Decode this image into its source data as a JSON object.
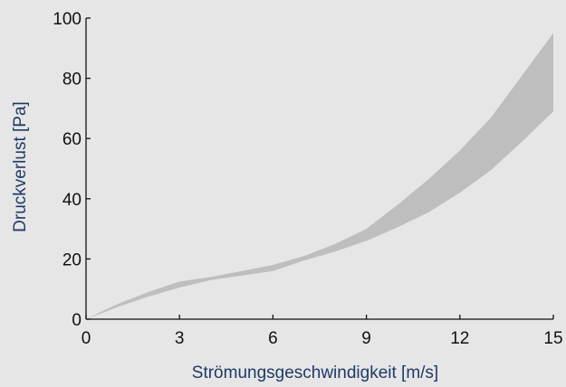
{
  "chart_data": {
    "type": "area",
    "title": "",
    "xlabel": "Strömungsgeschwindigkeit [m/s]",
    "ylabel": "Druckverlust [Pa]",
    "xlim": [
      0,
      15
    ],
    "ylim": [
      0,
      100
    ],
    "xticks": [
      "0",
      "3",
      "6",
      "9",
      "12",
      "15"
    ],
    "yticks": [
      "0",
      "20",
      "40",
      "60",
      "80",
      "100"
    ],
    "grid": false,
    "legend": "none",
    "band": {
      "x": [
        0,
        1,
        2,
        3,
        4,
        5,
        6,
        7,
        8,
        9,
        10,
        11,
        12,
        13,
        14,
        15
      ],
      "upper": [
        0,
        5,
        9,
        12.5,
        14,
        16,
        18,
        21,
        25,
        30,
        38,
        46.5,
        56,
        67,
        81,
        95
      ],
      "lower": [
        0,
        4,
        7.5,
        10.5,
        13,
        14.5,
        16,
        19.5,
        22.5,
        26,
        30.5,
        35.5,
        42,
        49.5,
        59,
        69
      ]
    },
    "colors": {
      "band": "#bebebe",
      "axis": "#111111",
      "axis_title": "#1f3a66",
      "background": "#e6e6e6"
    }
  }
}
